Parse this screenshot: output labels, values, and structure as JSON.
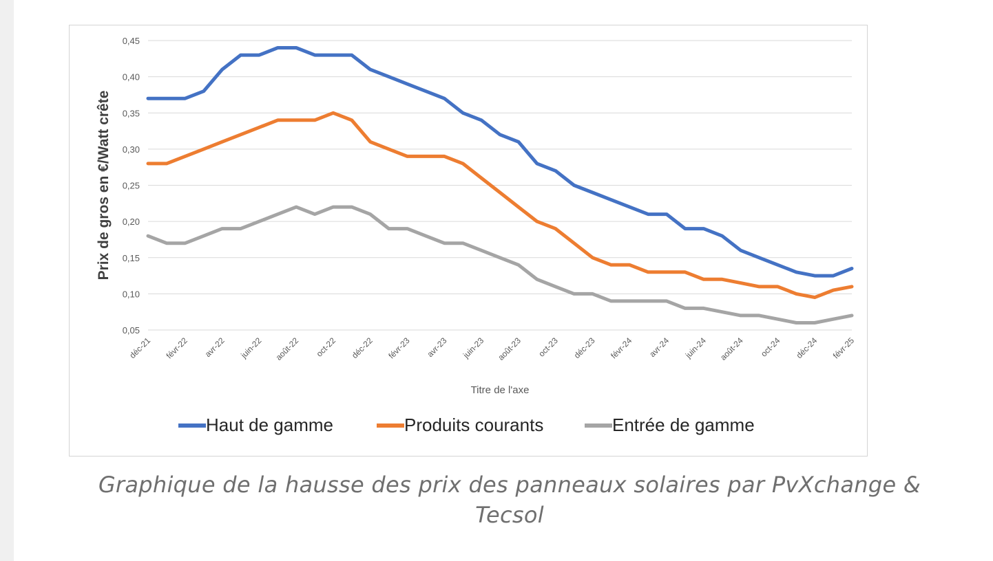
{
  "caption": "Graphique de la hausse des prix des panneaux solaires par PvXchange & Tecsol",
  "chart_data": {
    "type": "line",
    "title": "",
    "xlabel": "Titre de l'axe",
    "ylabel": "Prix de gros en €/Watt crête",
    "ylim": [
      0.05,
      0.45
    ],
    "yticks": [
      "0,45",
      "0,40",
      "0,35",
      "0,30",
      "0,25",
      "0,20",
      "0,15",
      "0,10",
      "0,05"
    ],
    "grid": true,
    "legend": "bottom",
    "x_labels": [
      "déc-21",
      "févr-22",
      "avr-22",
      "juin-22",
      "août-22",
      "oct-22",
      "déc-22",
      "févr-23",
      "avr-23",
      "juin-23",
      "août-23",
      "oct-23",
      "déc-23",
      "févr-24",
      "avr-24",
      "juin-24",
      "août-24",
      "oct-24",
      "déc-24",
      "févr-25"
    ],
    "x": [
      "déc-21",
      "janv-22",
      "févr-22",
      "mars-22",
      "avr-22",
      "mai-22",
      "juin-22",
      "juil-22",
      "août-22",
      "sept-22",
      "oct-22",
      "nov-22",
      "déc-22",
      "janv-23",
      "févr-23",
      "mars-23",
      "avr-23",
      "mai-23",
      "juin-23",
      "juil-23",
      "août-23",
      "sept-23",
      "oct-23",
      "nov-23",
      "déc-23",
      "janv-24",
      "févr-24",
      "mars-24",
      "avr-24",
      "mai-24",
      "juin-24",
      "juil-24",
      "août-24",
      "sept-24",
      "oct-24",
      "nov-24",
      "déc-24",
      "janv-25",
      "févr-25"
    ],
    "series": [
      {
        "name": "Haut de gamme",
        "color": "#4472c4",
        "values": [
          0.37,
          0.37,
          0.37,
          0.38,
          0.41,
          0.43,
          0.43,
          0.44,
          0.44,
          0.43,
          0.43,
          0.43,
          0.41,
          0.4,
          0.39,
          0.38,
          0.37,
          0.35,
          0.34,
          0.32,
          0.31,
          0.28,
          0.27,
          0.25,
          0.24,
          0.23,
          0.22,
          0.21,
          0.21,
          0.19,
          0.19,
          0.18,
          0.16,
          0.15,
          0.14,
          0.13,
          0.125,
          0.125,
          0.135
        ]
      },
      {
        "name": "Produits courants",
        "color": "#ed7d31",
        "values": [
          0.28,
          0.28,
          0.29,
          0.3,
          0.31,
          0.32,
          0.33,
          0.34,
          0.34,
          0.34,
          0.35,
          0.34,
          0.31,
          0.3,
          0.29,
          0.29,
          0.29,
          0.28,
          0.26,
          0.24,
          0.22,
          0.2,
          0.19,
          0.17,
          0.15,
          0.14,
          0.14,
          0.13,
          0.13,
          0.13,
          0.12,
          0.12,
          0.115,
          0.11,
          0.11,
          0.1,
          0.095,
          0.105,
          0.11
        ]
      },
      {
        "name": "Entrée de gamme",
        "color": "#a5a5a5",
        "values": [
          0.18,
          0.17,
          0.17,
          0.18,
          0.19,
          0.19,
          0.2,
          0.21,
          0.22,
          0.21,
          0.22,
          0.22,
          0.21,
          0.19,
          0.19,
          0.18,
          0.17,
          0.17,
          0.16,
          0.15,
          0.14,
          0.12,
          0.11,
          0.1,
          0.1,
          0.09,
          0.09,
          0.09,
          0.09,
          0.08,
          0.08,
          0.075,
          0.07,
          0.07,
          0.065,
          0.06,
          0.06,
          0.065,
          0.07
        ]
      }
    ]
  }
}
